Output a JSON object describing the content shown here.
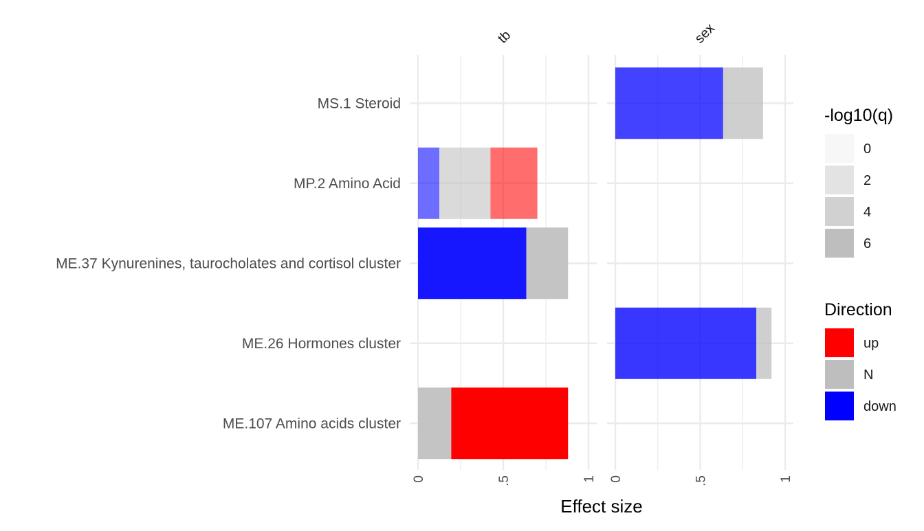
{
  "chart_data": {
    "type": "bar",
    "orientation": "horizontal",
    "stacked": true,
    "xlabel": "Effect size",
    "categories": [
      "MS.1 Steroid",
      "MP.2 Amino Acid",
      "ME.37 Kynurenines, taurocholates and cortisol cluster",
      "ME.26 Hormones cluster",
      "ME.107 Amino acids cluster"
    ],
    "xlim": [
      0,
      1
    ],
    "x_ticks": [
      {
        "value": 0,
        "label": "0"
      },
      {
        "value": 0.5,
        "label": ".5"
      },
      {
        "value": 1,
        "label": "1"
      }
    ],
    "grid": true,
    "facets": [
      {
        "label": "tb",
        "bars": [
          {
            "category": "MP.2 Amino Acid",
            "segments": [
              {
                "direction": "down",
                "value": 0.125,
                "neglog10q": 2
              },
              {
                "direction": "N",
                "value": 0.3,
                "neglog10q": 2
              },
              {
                "direction": "up",
                "value": 0.275,
                "neglog10q": 2
              }
            ]
          },
          {
            "category": "ME.37 Kynurenines, taurocholates and cortisol cluster",
            "segments": [
              {
                "direction": "down",
                "value": 0.635,
                "neglog10q": 6
              },
              {
                "direction": "N",
                "value": 0.245,
                "neglog10q": 6
              }
            ]
          },
          {
            "category": "ME.107 Amino acids cluster",
            "segments": [
              {
                "direction": "N",
                "value": 0.195,
                "neglog10q": 6
              },
              {
                "direction": "up",
                "value": 0.685,
                "neglog10q": 7
              }
            ]
          }
        ]
      },
      {
        "label": "sex",
        "bars": [
          {
            "category": "MS.1 Steroid",
            "segments": [
              {
                "direction": "down",
                "value": 0.635,
                "neglog10q": 4
              },
              {
                "direction": "N",
                "value": 0.235,
                "neglog10q": 4
              }
            ]
          },
          {
            "category": "ME.26 Hormones cluster",
            "segments": [
              {
                "direction": "down",
                "value": 0.83,
                "neglog10q": 4.5
              },
              {
                "direction": "N",
                "value": 0.09,
                "neglog10q": 4
              }
            ]
          }
        ]
      }
    ],
    "legends": [
      {
        "title": "-log10(q)",
        "entries": [
          {
            "label": "0",
            "color": "#f7f7f7"
          },
          {
            "label": "2",
            "color": "#e3e3e3"
          },
          {
            "label": "4",
            "color": "#d1d1d1"
          },
          {
            "label": "6",
            "color": "#bebebe"
          }
        ]
      },
      {
        "title": "Direction",
        "entries": [
          {
            "label": "up",
            "color": "#ff0000"
          },
          {
            "label": "N",
            "color": "#bebebe"
          },
          {
            "label": "down",
            "color": "#0000ff"
          }
        ]
      }
    ],
    "direction_colors": {
      "up": "#ff0000",
      "N": "#bebebe",
      "down": "#0000ff"
    },
    "alpha_scale": {
      "min_q": 0,
      "max_q": 7
    }
  }
}
